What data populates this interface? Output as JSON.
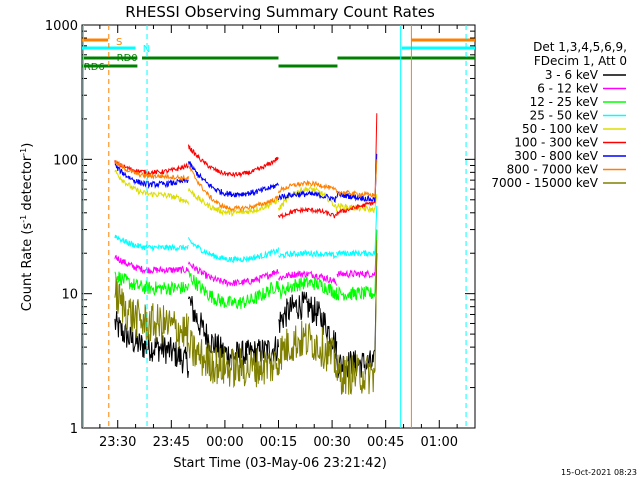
{
  "chart_data": {
    "type": "line",
    "title": "RHESSI Observing Summary Count Rates",
    "xlabel": "Start Time (03-May-06 23:21:42)",
    "ylabel_main": "Count Rate (s",
    "ylabel_sup1": "-1",
    "ylabel_mid": " detector",
    "ylabel_sup2": "-1",
    "ylabel_end": ")",
    "yscale": "log",
    "x_range_minutes": [
      -10,
      100
    ],
    "ylim": [
      1,
      1000
    ],
    "x_ticks": [
      {
        "m": 0,
        "label": "23:30"
      },
      {
        "m": 15,
        "label": "23:45"
      },
      {
        "m": 30,
        "label": "00:00"
      },
      {
        "m": 45,
        "label": "00:15"
      },
      {
        "m": 60,
        "label": "00:30"
      },
      {
        "m": 75,
        "label": "00:45"
      },
      {
        "m": 90,
        "label": "01:00"
      }
    ],
    "y_ticks": [
      {
        "v": 1,
        "label": "1"
      },
      {
        "v": 10,
        "label": "10"
      },
      {
        "v": 100,
        "label": "100"
      },
      {
        "v": 1000,
        "label": "1000"
      }
    ],
    "legend_header": [
      "Det 1,3,4,5,6,9,",
      "FDecim 1, Att 0"
    ],
    "series": [
      {
        "name": "3 - 6 keV",
        "color": "#000000"
      },
      {
        "name": "6 - 12 keV",
        "color": "#ff00ff"
      },
      {
        "name": "12 - 25 keV",
        "color": "#00ff00"
      },
      {
        "name": "25 - 50 keV",
        "color": "#00ffff"
      },
      {
        "name": "50 - 100 keV",
        "color": "#dddd00"
      },
      {
        "name": "100 - 300 keV",
        "color": "#ff0000"
      },
      {
        "name": "300 - 800 keV",
        "color": "#0000ff"
      },
      {
        "name": "800 - 7000 keV",
        "color": "#ff8000"
      },
      {
        "name": "7000 - 15000 keV",
        "color": "#808000"
      }
    ],
    "flag_labels": {
      "saa": "S",
      "night": "N",
      "rd0": "RD0",
      "rd6": "RD6"
    },
    "footer_date": "15-Oct-2021 08:23"
  }
}
